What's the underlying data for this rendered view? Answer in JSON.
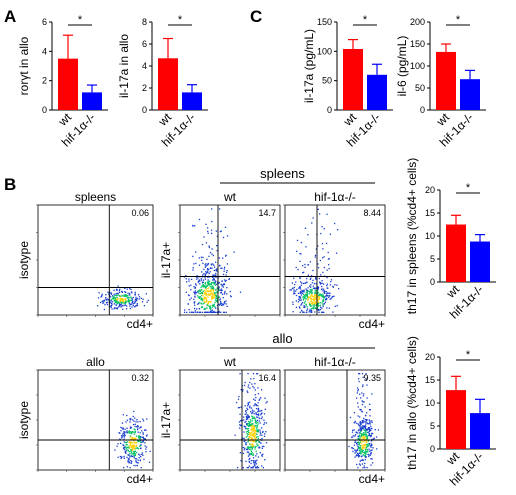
{
  "panel_labels": {
    "a": "A",
    "b": "B",
    "c": "C"
  },
  "sig_marker": "*",
  "colors": {
    "wt": "#ff0000",
    "hif": "#0000ff",
    "axis": "#000000",
    "dots_low": "#1a3fd0",
    "dots_mid": "#00c060",
    "dots_high": "#ffd000"
  },
  "chart_data": [
    {
      "type": "bar",
      "panel": "A",
      "categories": [
        "wt",
        "hif-1α-/-"
      ],
      "values": [
        3.5,
        1.2
      ],
      "errors": [
        1.6,
        0.5
      ],
      "ylabel": "rorγt in allo",
      "ylim": [
        0,
        6
      ],
      "yticks": [
        "0",
        "2",
        "4",
        "6"
      ],
      "significance": "*"
    },
    {
      "type": "bar",
      "panel": "A",
      "categories": [
        "wt",
        "hif-1α-/-"
      ],
      "values": [
        4.7,
        1.6
      ],
      "errors": [
        1.8,
        0.7
      ],
      "ylabel": "il-17a in allo",
      "ylim": [
        0,
        8
      ],
      "yticks": [
        "0",
        "2",
        "4",
        "6",
        "8"
      ],
      "significance": "*"
    },
    {
      "type": "bar",
      "panel": "C",
      "categories": [
        "wt",
        "hif-1α-/-"
      ],
      "values": [
        104,
        60
      ],
      "errors": [
        16,
        18
      ],
      "ylabel": "il-17a (pg/mL)",
      "ylim": [
        0,
        150
      ],
      "yticks": [
        "0",
        "50",
        "100",
        "150"
      ],
      "significance": "*"
    },
    {
      "type": "bar",
      "panel": "C",
      "categories": [
        "wt",
        "hif-1α-/-"
      ],
      "values": [
        132,
        70
      ],
      "errors": [
        18,
        20
      ],
      "ylabel": "il-6 (pg/mL)",
      "ylim": [
        0,
        200
      ],
      "yticks": [
        "0",
        "50",
        "100",
        "150",
        "200"
      ],
      "significance": "*"
    },
    {
      "type": "bar",
      "panel": "B",
      "categories": [
        "wt",
        "hif-1α-/-"
      ],
      "values": [
        12.5,
        8.8
      ],
      "errors": [
        2.0,
        1.5
      ],
      "ylabel": "th17 in spleens (%cd4+ cells)",
      "ylim": [
        0,
        20
      ],
      "yticks": [
        "0",
        "5",
        "10",
        "15",
        "20"
      ],
      "significance": "*"
    },
    {
      "type": "bar",
      "panel": "B",
      "categories": [
        "wt",
        "hif-1α-/-"
      ],
      "values": [
        12.8,
        7.8
      ],
      "errors": [
        3.0,
        3.0
      ],
      "ylabel": "th17 in allo (%cd4+ cells)",
      "ylim": [
        0,
        20
      ],
      "yticks": [
        "0",
        "5",
        "10",
        "15",
        "20"
      ],
      "significance": "*"
    },
    {
      "type": "scatter",
      "panel": "B",
      "subtype": "flow cytometry",
      "title": "spleens",
      "ylabel": "isotype",
      "xlabel": "cd4+",
      "quadrant_value": "0.06"
    },
    {
      "type": "scatter",
      "panel": "B",
      "subtype": "flow cytometry",
      "group_title": "spleens",
      "title": "wt",
      "ylabel": "il-17a+",
      "xlabel": "",
      "quadrant_value": "14.7"
    },
    {
      "type": "scatter",
      "panel": "B",
      "subtype": "flow cytometry",
      "group_title": "spleens",
      "title": "hif-1α-/-",
      "ylabel": "",
      "xlabel": "cd4+",
      "quadrant_value": "8.44"
    },
    {
      "type": "scatter",
      "panel": "B",
      "subtype": "flow cytometry",
      "title": "allo",
      "ylabel": "isotype",
      "xlabel": "cd4+",
      "quadrant_value": "0.32"
    },
    {
      "type": "scatter",
      "panel": "B",
      "subtype": "flow cytometry",
      "group_title": "allo",
      "title": "wt",
      "ylabel": "il-17a+",
      "xlabel": "",
      "quadrant_value": "16.4"
    },
    {
      "type": "scatter",
      "panel": "B",
      "subtype": "flow cytometry",
      "group_title": "allo",
      "title": "hif-1α-/-",
      "ylabel": "",
      "xlabel": "cd4+",
      "quadrant_value": "9.35"
    }
  ]
}
